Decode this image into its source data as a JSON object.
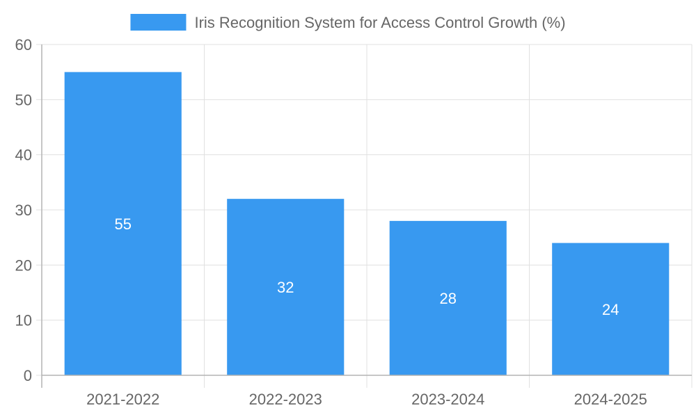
{
  "chart_data": {
    "type": "bar",
    "title": "",
    "xlabel": "",
    "ylabel": "",
    "categories": [
      "2021-2022",
      "2022-2023",
      "2023-2024",
      "2024-2025"
    ],
    "series": [
      {
        "name": "Iris Recognition System for Access Control Growth (%)",
        "values": [
          55,
          32,
          28,
          24
        ],
        "color": "#3899f0"
      }
    ],
    "ylim": [
      0,
      60
    ],
    "yticks": [
      0,
      10,
      20,
      30,
      40,
      50,
      60
    ],
    "grid": true,
    "legend_position": "top-center",
    "colors": {
      "grid": "#e0e0e0",
      "axis": "#b3b3b3",
      "text": "#666666",
      "data_label": "#ffffff"
    }
  }
}
